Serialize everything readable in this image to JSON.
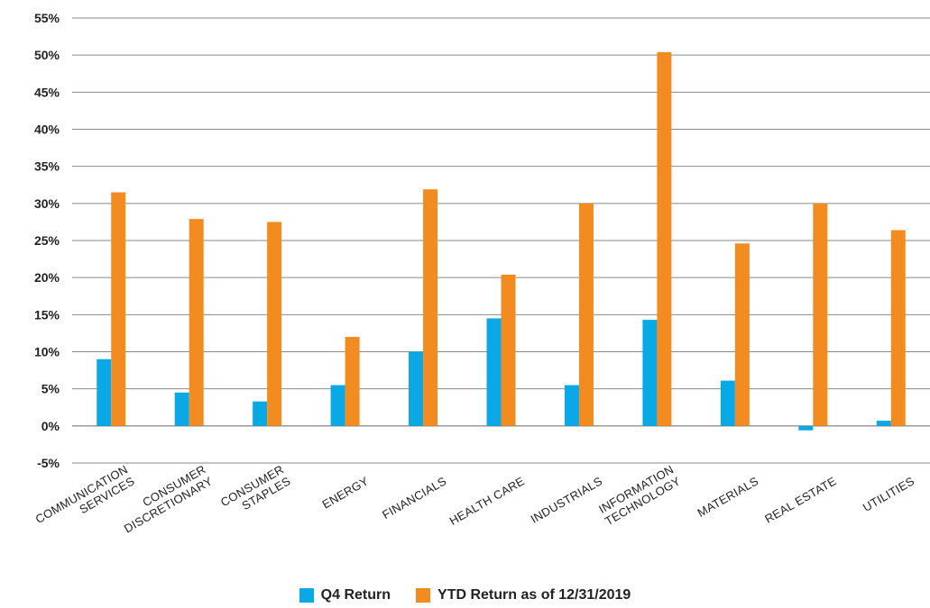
{
  "chart_data": {
    "type": "bar",
    "categories": [
      [
        "COMMUNICATION",
        "SERVICES"
      ],
      [
        "CONSUMER",
        "DISCRETIONARY"
      ],
      [
        "CONSUMER",
        "STAPLES"
      ],
      [
        "ENERGY"
      ],
      [
        "FINANCIALS"
      ],
      [
        "HEALTH CARE"
      ],
      [
        "INDUSTRIALS"
      ],
      [
        "INFORMATION",
        "TECHNOLOGY"
      ],
      [
        "MATERIALS"
      ],
      [
        "REAL ESTATE"
      ],
      [
        "UTILITIES"
      ]
    ],
    "series": [
      {
        "name": "Q4 Return",
        "color": "#0BA8E6",
        "values": [
          9.0,
          4.5,
          3.3,
          5.5,
          10.0,
          14.5,
          5.5,
          14.3,
          6.1,
          -0.6,
          0.7
        ]
      },
      {
        "name": "YTD Return as of 12/31/2019",
        "color": "#F28B20",
        "values": [
          31.5,
          27.9,
          27.5,
          12.0,
          31.9,
          20.4,
          30.0,
          50.4,
          24.6,
          30.0,
          26.4
        ]
      }
    ],
    "ylim": [
      -5,
      55
    ],
    "yticks": [
      "-5%",
      "0%",
      "5%",
      "10%",
      "15%",
      "20%",
      "25%",
      "30%",
      "35%",
      "40%",
      "45%",
      "50%",
      "55%"
    ],
    "title": "",
    "xlabel": "",
    "ylabel": "",
    "grid": true,
    "legend_position": "bottom"
  }
}
